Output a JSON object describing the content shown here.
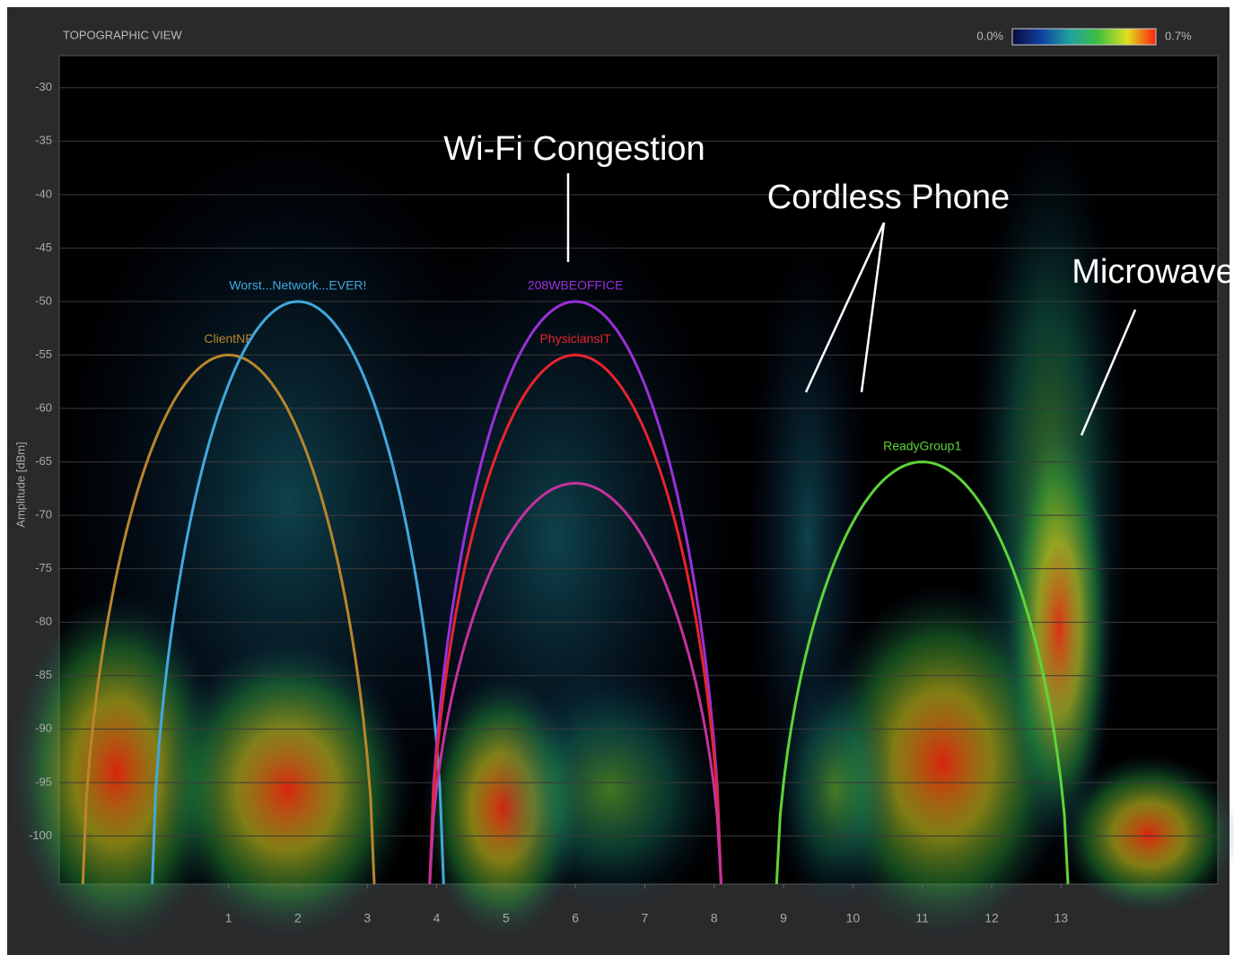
{
  "chart_data": {
    "type": "spectrum",
    "title": "TOPOGRAPHIC VIEW",
    "y_label": "Amplitude [dBm]",
    "xlim": [
      -1.44,
      15.26
    ],
    "xticks": [
      1,
      2,
      3,
      4,
      5,
      6,
      7,
      8,
      9,
      10,
      11,
      12,
      13
    ],
    "ylim": [
      -104.5,
      -27
    ],
    "yticks": [
      -30,
      -35,
      -40,
      -45,
      -50,
      -55,
      -60,
      -65,
      -70,
      -75,
      -80,
      -85,
      -90,
      -95,
      -100
    ],
    "grid": true,
    "colorbar": {
      "ticks": [
        {
          "value": 0,
          "label": "0.0%"
        },
        {
          "value": 0.7,
          "label": "0.7%"
        }
      ]
    },
    "series": [
      {
        "name": "ClientNF",
        "color": "#b8862b",
        "channel": 1,
        "peak": -55
      },
      {
        "name": "Worst...Network...EVER!",
        "color": "#41a8dc",
        "channel": 2,
        "peak": -50
      },
      {
        "name": "208WBEOFFICE",
        "color": "#9a30d8",
        "channel": 6,
        "peak": -50
      },
      {
        "name": "PhysiciansIT",
        "color": "#e8242f",
        "channel": 6,
        "peak": -55
      },
      {
        "color": "#c4329c",
        "channel": 6,
        "peak": -67
      },
      {
        "name": "ReadyGroup1",
        "color": "#5ed43a",
        "channel": 11,
        "peak": -65
      }
    ],
    "annotations": [
      "Wi-Fi Congestion",
      "Cordless Phone",
      "Microwave"
    ]
  }
}
